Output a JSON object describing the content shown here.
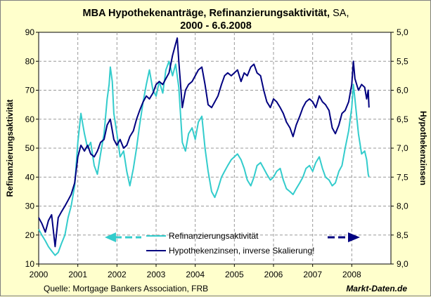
{
  "chart_data": {
    "type": "line",
    "title_bold": "MBA Hypothekenanträge, Refinanzierungsaktivität,",
    "title_light": "SA,",
    "subtitle": "2000 - 6.6.2008",
    "ylabel_left": "Refinanzierungsaktivität",
    "ylabel_right": "Hypothekenzinsen",
    "x_ticks": [
      "2000",
      "2001",
      "2002",
      "2003",
      "2004",
      "2005",
      "2006",
      "2007",
      "2008"
    ],
    "y_left_ticks": [
      "10",
      "20",
      "30",
      "40",
      "50",
      "60",
      "70",
      "80",
      "90"
    ],
    "y_right_ticks": [
      "9,0",
      "8,5",
      "8,0",
      "7,5",
      "7,0",
      "6,5",
      "6,0",
      "5,5",
      "5,0"
    ],
    "xlim": [
      2000.0,
      2009.0
    ],
    "ylim_left": [
      10,
      90
    ],
    "ylim_right_inverted": [
      9.0,
      5.0
    ],
    "grid": true,
    "legend_position": "bottom-center",
    "series": [
      {
        "name": "Refinanzierungsaktivität",
        "axis": "left",
        "color": "#33cccc",
        "points": [
          [
            2000.0,
            22
          ],
          [
            2000.08,
            20
          ],
          [
            2000.17,
            18
          ],
          [
            2000.25,
            16
          ],
          [
            2000.33,
            14.5
          ],
          [
            2000.42,
            13
          ],
          [
            2000.5,
            14
          ],
          [
            2000.58,
            17
          ],
          [
            2000.67,
            20
          ],
          [
            2000.75,
            26
          ],
          [
            2000.83,
            30
          ],
          [
            2000.92,
            37
          ],
          [
            2001.0,
            52
          ],
          [
            2001.04,
            57
          ],
          [
            2001.08,
            62
          ],
          [
            2001.13,
            58
          ],
          [
            2001.17,
            55
          ],
          [
            2001.25,
            50
          ],
          [
            2001.33,
            52
          ],
          [
            2001.42,
            44
          ],
          [
            2001.5,
            41
          ],
          [
            2001.58,
            48
          ],
          [
            2001.67,
            55
          ],
          [
            2001.75,
            67
          ],
          [
            2001.8,
            72
          ],
          [
            2001.83,
            78
          ],
          [
            2001.88,
            73
          ],
          [
            2001.92,
            62
          ],
          [
            2002.0,
            55
          ],
          [
            2002.08,
            47
          ],
          [
            2002.17,
            49
          ],
          [
            2002.25,
            42
          ],
          [
            2002.33,
            37
          ],
          [
            2002.42,
            43
          ],
          [
            2002.5,
            50
          ],
          [
            2002.58,
            58
          ],
          [
            2002.67,
            66
          ],
          [
            2002.75,
            72
          ],
          [
            2002.83,
            77
          ],
          [
            2002.92,
            70
          ],
          [
            2003.0,
            68
          ],
          [
            2003.08,
            73
          ],
          [
            2003.17,
            69
          ],
          [
            2003.25,
            77
          ],
          [
            2003.33,
            80
          ],
          [
            2003.42,
            75
          ],
          [
            2003.5,
            79
          ],
          [
            2003.58,
            71
          ],
          [
            2003.67,
            52
          ],
          [
            2003.75,
            49
          ],
          [
            2003.83,
            55
          ],
          [
            2003.92,
            57
          ],
          [
            2004.0,
            53
          ],
          [
            2004.08,
            59
          ],
          [
            2004.17,
            61
          ],
          [
            2004.25,
            50
          ],
          [
            2004.33,
            42
          ],
          [
            2004.42,
            35
          ],
          [
            2004.5,
            33
          ],
          [
            2004.58,
            36
          ],
          [
            2004.67,
            40
          ],
          [
            2004.75,
            42
          ],
          [
            2004.83,
            44
          ],
          [
            2004.92,
            46
          ],
          [
            2005.0,
            47
          ],
          [
            2005.08,
            48
          ],
          [
            2005.17,
            46
          ],
          [
            2005.25,
            43
          ],
          [
            2005.33,
            39
          ],
          [
            2005.42,
            37
          ],
          [
            2005.5,
            40
          ],
          [
            2005.58,
            44
          ],
          [
            2005.67,
            45
          ],
          [
            2005.75,
            43
          ],
          [
            2005.83,
            41
          ],
          [
            2005.92,
            39
          ],
          [
            2006.0,
            40
          ],
          [
            2006.08,
            42
          ],
          [
            2006.17,
            43
          ],
          [
            2006.25,
            39
          ],
          [
            2006.33,
            36
          ],
          [
            2006.42,
            35
          ],
          [
            2006.5,
            34
          ],
          [
            2006.58,
            36
          ],
          [
            2006.67,
            38
          ],
          [
            2006.75,
            40
          ],
          [
            2006.83,
            43
          ],
          [
            2006.92,
            44
          ],
          [
            2007.0,
            42
          ],
          [
            2007.08,
            45
          ],
          [
            2007.17,
            47
          ],
          [
            2007.25,
            43
          ],
          [
            2007.33,
            40
          ],
          [
            2007.42,
            39
          ],
          [
            2007.5,
            37
          ],
          [
            2007.58,
            38
          ],
          [
            2007.67,
            42
          ],
          [
            2007.75,
            44
          ],
          [
            2007.83,
            50
          ],
          [
            2007.92,
            56
          ],
          [
            2008.0,
            64
          ],
          [
            2008.04,
            72
          ],
          [
            2008.08,
            67
          ],
          [
            2008.17,
            55
          ],
          [
            2008.25,
            48
          ],
          [
            2008.33,
            49
          ],
          [
            2008.38,
            46
          ],
          [
            2008.42,
            41
          ],
          [
            2008.44,
            40
          ]
        ]
      },
      {
        "name": "Hypothekenzinsen, inverse Skalierung!",
        "axis": "right",
        "color": "#000080",
        "points": [
          [
            2000.0,
            8.2
          ],
          [
            2000.08,
            8.3
          ],
          [
            2000.17,
            8.45
          ],
          [
            2000.25,
            8.25
          ],
          [
            2000.33,
            8.15
          ],
          [
            2000.42,
            8.7
          ],
          [
            2000.5,
            8.2
          ],
          [
            2000.58,
            8.1
          ],
          [
            2000.67,
            8.0
          ],
          [
            2000.75,
            7.9
          ],
          [
            2000.83,
            7.8
          ],
          [
            2000.92,
            7.6
          ],
          [
            2001.0,
            7.15
          ],
          [
            2001.08,
            6.95
          ],
          [
            2001.17,
            7.05
          ],
          [
            2001.25,
            6.95
          ],
          [
            2001.33,
            7.1
          ],
          [
            2001.42,
            7.15
          ],
          [
            2001.5,
            7.05
          ],
          [
            2001.58,
            6.9
          ],
          [
            2001.67,
            6.85
          ],
          [
            2001.75,
            6.6
          ],
          [
            2001.83,
            6.5
          ],
          [
            2001.92,
            6.85
          ],
          [
            2002.0,
            6.95
          ],
          [
            2002.08,
            6.85
          ],
          [
            2002.17,
            7.0
          ],
          [
            2002.25,
            6.95
          ],
          [
            2002.33,
            6.8
          ],
          [
            2002.42,
            6.7
          ],
          [
            2002.5,
            6.5
          ],
          [
            2002.58,
            6.35
          ],
          [
            2002.67,
            6.2
          ],
          [
            2002.75,
            6.1
          ],
          [
            2002.83,
            6.15
          ],
          [
            2002.92,
            6.05
          ],
          [
            2003.0,
            5.9
          ],
          [
            2003.08,
            5.85
          ],
          [
            2003.17,
            5.9
          ],
          [
            2003.25,
            5.8
          ],
          [
            2003.33,
            5.7
          ],
          [
            2003.42,
            5.4
          ],
          [
            2003.5,
            5.2
          ],
          [
            2003.54,
            5.1
          ],
          [
            2003.58,
            5.5
          ],
          [
            2003.67,
            6.3
          ],
          [
            2003.75,
            6.0
          ],
          [
            2003.83,
            5.9
          ],
          [
            2003.92,
            5.85
          ],
          [
            2004.0,
            5.75
          ],
          [
            2004.08,
            5.65
          ],
          [
            2004.17,
            5.6
          ],
          [
            2004.25,
            5.9
          ],
          [
            2004.33,
            6.25
          ],
          [
            2004.42,
            6.3
          ],
          [
            2004.5,
            6.2
          ],
          [
            2004.58,
            6.1
          ],
          [
            2004.67,
            5.9
          ],
          [
            2004.75,
            5.75
          ],
          [
            2004.83,
            5.7
          ],
          [
            2004.92,
            5.75
          ],
          [
            2005.0,
            5.7
          ],
          [
            2005.08,
            5.65
          ],
          [
            2005.17,
            5.85
          ],
          [
            2005.25,
            5.7
          ],
          [
            2005.33,
            5.75
          ],
          [
            2005.42,
            5.6
          ],
          [
            2005.5,
            5.55
          ],
          [
            2005.58,
            5.7
          ],
          [
            2005.67,
            5.75
          ],
          [
            2005.75,
            6.0
          ],
          [
            2005.83,
            6.2
          ],
          [
            2005.92,
            6.3
          ],
          [
            2006.0,
            6.15
          ],
          [
            2006.08,
            6.2
          ],
          [
            2006.17,
            6.3
          ],
          [
            2006.25,
            6.4
          ],
          [
            2006.33,
            6.55
          ],
          [
            2006.42,
            6.65
          ],
          [
            2006.5,
            6.8
          ],
          [
            2006.58,
            6.6
          ],
          [
            2006.67,
            6.45
          ],
          [
            2006.75,
            6.3
          ],
          [
            2006.83,
            6.2
          ],
          [
            2006.92,
            6.15
          ],
          [
            2007.0,
            6.2
          ],
          [
            2007.08,
            6.3
          ],
          [
            2007.17,
            6.1
          ],
          [
            2007.25,
            6.2
          ],
          [
            2007.33,
            6.25
          ],
          [
            2007.42,
            6.35
          ],
          [
            2007.5,
            6.65
          ],
          [
            2007.58,
            6.75
          ],
          [
            2007.67,
            6.6
          ],
          [
            2007.75,
            6.4
          ],
          [
            2007.83,
            6.35
          ],
          [
            2007.92,
            6.2
          ],
          [
            2008.0,
            5.9
          ],
          [
            2008.04,
            5.5
          ],
          [
            2008.08,
            5.8
          ],
          [
            2008.17,
            6.0
          ],
          [
            2008.25,
            5.9
          ],
          [
            2008.33,
            5.95
          ],
          [
            2008.38,
            6.15
          ],
          [
            2008.42,
            6.0
          ],
          [
            2008.44,
            6.3
          ]
        ]
      }
    ]
  },
  "footer": {
    "source": "Quelle: Mortgage Bankers Association, FRB",
    "brand": "Markt-Daten.de"
  }
}
